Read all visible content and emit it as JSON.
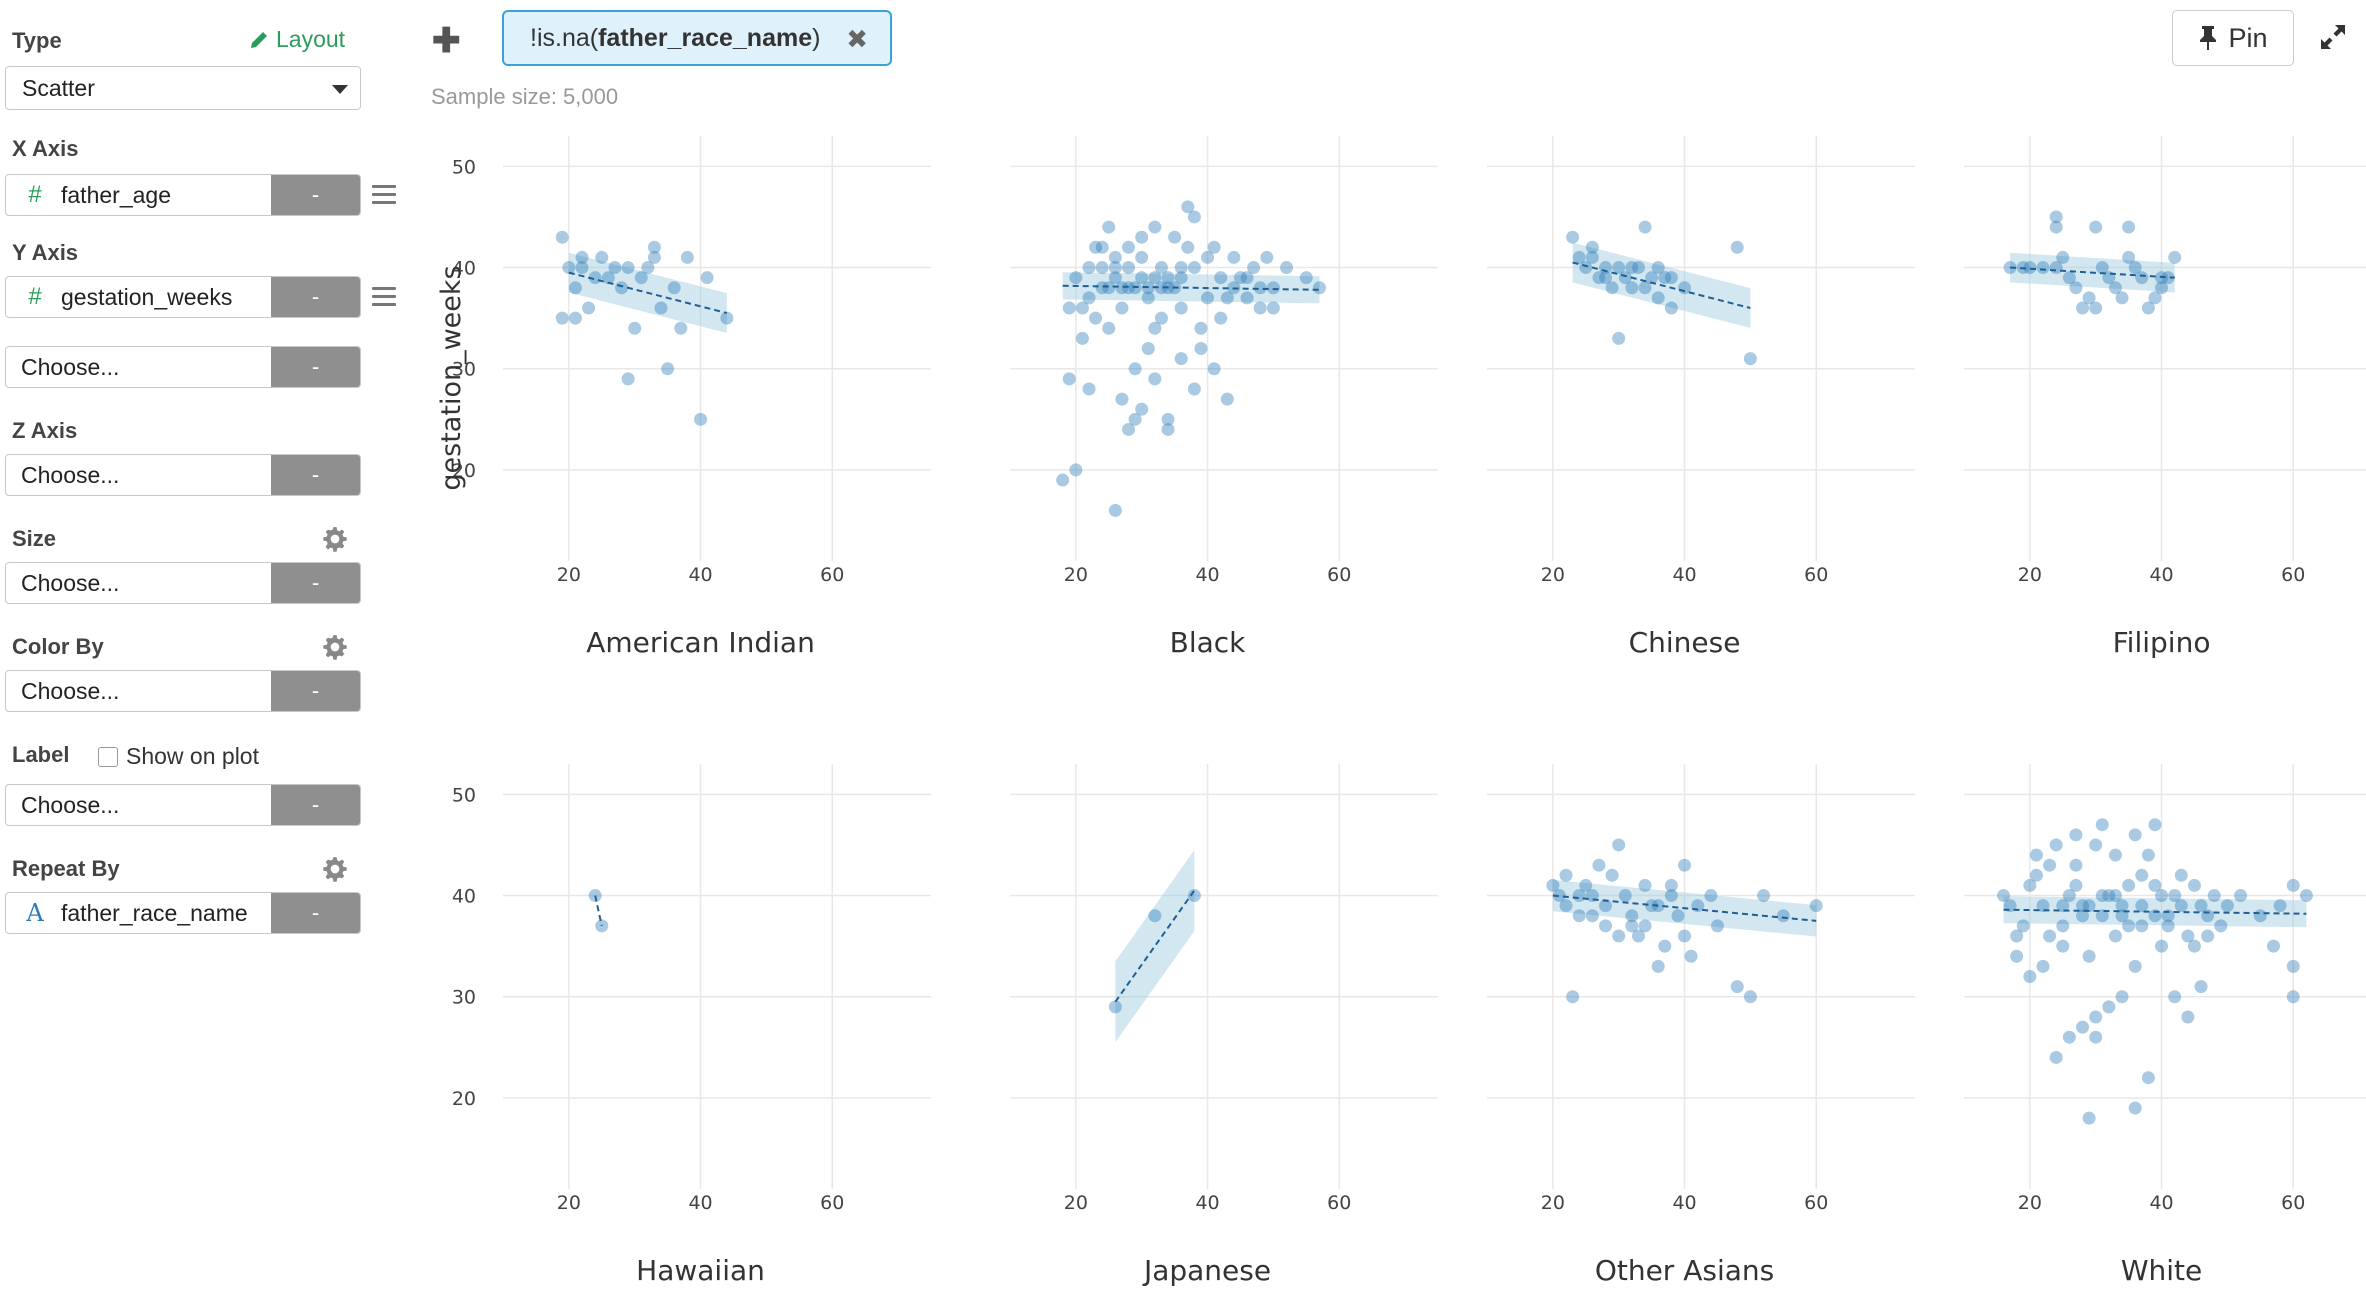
{
  "sidebar": {
    "type_label": "Type",
    "layout_link": "Layout",
    "type_value": "Scatter",
    "x_axis_label": "X Axis",
    "x_axis_value": "father_age",
    "x_axis_type_icon": "#",
    "y_axis_label": "Y Axis",
    "y_axis_value": "gestation_weeks",
    "y_axis_type_icon": "#",
    "y_axis_extra_value": "Choose...",
    "z_axis_label": "Z Axis",
    "z_axis_value": "Choose...",
    "size_label": "Size",
    "size_value": "Choose...",
    "color_label": "Color By",
    "color_value": "Choose...",
    "label_label": "Label",
    "label_checkbox": "Show on plot",
    "label_value": "Choose...",
    "repeat_label": "Repeat By",
    "repeat_value": "father_race_name",
    "repeat_type_icon": "A",
    "minus": "-"
  },
  "topbar": {
    "filter_prefix": "!is.na(",
    "filter_column": "father_race_name",
    "filter_suffix": ")",
    "sample_size": "Sample size: 5,000",
    "pin_label": "Pin"
  },
  "colors": {
    "accent_green": "#2a9d5c",
    "filter_border": "#3aa3d6",
    "point": "#2b7bba",
    "band": "#9ecae1"
  },
  "chart_data": {
    "type": "scatter",
    "facet_by": "father_race_name",
    "ylabel": "gestation_weeks",
    "xlabel": "father_age",
    "xlim": [
      10,
      75
    ],
    "ylim": [
      11,
      53
    ],
    "x_ticks": [
      20,
      40,
      60
    ],
    "y_ticks": [
      20,
      30,
      40,
      50
    ],
    "trend": "linear fit with confidence band (dashed line)",
    "facets": [
      {
        "name": "American Indian",
        "fit": [
          [
            20,
            39.5
          ],
          [
            44,
            35.5
          ]
        ],
        "points": [
          [
            19,
            43
          ],
          [
            20,
            40
          ],
          [
            21,
            38
          ],
          [
            22,
            40
          ],
          [
            23,
            36
          ],
          [
            24,
            39
          ],
          [
            25,
            41
          ],
          [
            26,
            39
          ],
          [
            27,
            40
          ],
          [
            28,
            38
          ],
          [
            29,
            29
          ],
          [
            30,
            34
          ],
          [
            31,
            39
          ],
          [
            32,
            40
          ],
          [
            33,
            41
          ],
          [
            34,
            36
          ],
          [
            35,
            30
          ],
          [
            36,
            38
          ],
          [
            37,
            34
          ],
          [
            38,
            41
          ],
          [
            40,
            25
          ],
          [
            41,
            39
          ],
          [
            44,
            35
          ],
          [
            19,
            35
          ],
          [
            21,
            35
          ],
          [
            22,
            41
          ],
          [
            29,
            40
          ],
          [
            33,
            42
          ]
        ]
      },
      {
        "name": "Black",
        "fit": [
          [
            18,
            38.2
          ],
          [
            57,
            37.8
          ]
        ],
        "points": [
          [
            18,
            19
          ],
          [
            20,
            20
          ],
          [
            19,
            29
          ],
          [
            21,
            33
          ],
          [
            22,
            28
          ],
          [
            23,
            35
          ],
          [
            24,
            42
          ],
          [
            25,
            44
          ],
          [
            26,
            39
          ],
          [
            27,
            36
          ],
          [
            28,
            38
          ],
          [
            29,
            30
          ],
          [
            30,
            41
          ],
          [
            31,
            37
          ],
          [
            32,
            34
          ],
          [
            33,
            40
          ],
          [
            34,
            25
          ],
          [
            35,
            43
          ],
          [
            36,
            39
          ],
          [
            37,
            46
          ],
          [
            38,
            45
          ],
          [
            39,
            32
          ],
          [
            40,
            41
          ],
          [
            41,
            30
          ],
          [
            42,
            35
          ],
          [
            43,
            27
          ],
          [
            44,
            38
          ],
          [
            45,
            39
          ],
          [
            46,
            37
          ],
          [
            48,
            36
          ],
          [
            50,
            38
          ],
          [
            52,
            40
          ],
          [
            55,
            39
          ],
          [
            57,
            38
          ],
          [
            26,
            16
          ],
          [
            28,
            24
          ],
          [
            30,
            26
          ],
          [
            32,
            29
          ],
          [
            34,
            24
          ],
          [
            27,
            27
          ],
          [
            29,
            25
          ],
          [
            31,
            32
          ],
          [
            36,
            31
          ],
          [
            38,
            28
          ],
          [
            20,
            39
          ],
          [
            22,
            37
          ],
          [
            24,
            38
          ],
          [
            26,
            41
          ],
          [
            28,
            42
          ],
          [
            30,
            43
          ],
          [
            32,
            44
          ],
          [
            34,
            38
          ],
          [
            36,
            36
          ],
          [
            38,
            40
          ],
          [
            40,
            37
          ],
          [
            42,
            39
          ],
          [
            44,
            41
          ],
          [
            46,
            39
          ],
          [
            48,
            38
          ],
          [
            50,
            36
          ],
          [
            22,
            40
          ],
          [
            24,
            40
          ],
          [
            26,
            40
          ],
          [
            28,
            40
          ],
          [
            30,
            39
          ],
          [
            32,
            39
          ],
          [
            34,
            39
          ],
          [
            36,
            40
          ],
          [
            25,
            38
          ],
          [
            27,
            38
          ],
          [
            29,
            38
          ],
          [
            31,
            38
          ],
          [
            33,
            38
          ],
          [
            35,
            38
          ],
          [
            23,
            42
          ],
          [
            37,
            42
          ],
          [
            41,
            42
          ],
          [
            19,
            36
          ],
          [
            21,
            36
          ],
          [
            25,
            34
          ],
          [
            33,
            35
          ],
          [
            39,
            34
          ],
          [
            43,
            37
          ],
          [
            47,
            40
          ],
          [
            49,
            41
          ]
        ]
      },
      {
        "name": "Chinese",
        "fit": [
          [
            23,
            40.5
          ],
          [
            50,
            36
          ]
        ],
        "points": [
          [
            23,
            43
          ],
          [
            24,
            41
          ],
          [
            25,
            40
          ],
          [
            26,
            41
          ],
          [
            27,
            39
          ],
          [
            28,
            40
          ],
          [
            29,
            38
          ],
          [
            30,
            40
          ],
          [
            31,
            39
          ],
          [
            32,
            38
          ],
          [
            33,
            40
          ],
          [
            34,
            38
          ],
          [
            35,
            39
          ],
          [
            36,
            37
          ],
          [
            37,
            39
          ],
          [
            38,
            36
          ],
          [
            40,
            38
          ],
          [
            30,
            33
          ],
          [
            34,
            44
          ],
          [
            48,
            42
          ],
          [
            50,
            31
          ],
          [
            26,
            42
          ],
          [
            28,
            39
          ],
          [
            32,
            40
          ],
          [
            36,
            40
          ],
          [
            38,
            39
          ]
        ]
      },
      {
        "name": "Filipino",
        "fit": [
          [
            17,
            40
          ],
          [
            42,
            39
          ]
        ],
        "points": [
          [
            17,
            40
          ],
          [
            19,
            40
          ],
          [
            20,
            40
          ],
          [
            22,
            40
          ],
          [
            24,
            40
          ],
          [
            25,
            41
          ],
          [
            26,
            39
          ],
          [
            27,
            38
          ],
          [
            28,
            36
          ],
          [
            29,
            37
          ],
          [
            30,
            36
          ],
          [
            31,
            40
          ],
          [
            32,
            39
          ],
          [
            33,
            38
          ],
          [
            34,
            37
          ],
          [
            35,
            44
          ],
          [
            36,
            40
          ],
          [
            37,
            39
          ],
          [
            38,
            36
          ],
          [
            39,
            37
          ],
          [
            40,
            38
          ],
          [
            41,
            39
          ],
          [
            42,
            41
          ],
          [
            24,
            44
          ],
          [
            24,
            45
          ],
          [
            30,
            44
          ],
          [
            35,
            41
          ],
          [
            40,
            39
          ]
        ]
      },
      {
        "name": "Hawaiian",
        "fit": [
          [
            24,
            40
          ],
          [
            25,
            37
          ]
        ],
        "points": [
          [
            24,
            40
          ],
          [
            25,
            37
          ]
        ]
      },
      {
        "name": "Japanese",
        "fit": [
          [
            26,
            29.5
          ],
          [
            38,
            40.5
          ]
        ],
        "points": [
          [
            26,
            29
          ],
          [
            32,
            38
          ],
          [
            38,
            40
          ]
        ]
      },
      {
        "name": "Other Asians",
        "fit": [
          [
            20,
            40
          ],
          [
            60,
            37.5
          ]
        ],
        "points": [
          [
            20,
            41
          ],
          [
            21,
            40
          ],
          [
            22,
            39
          ],
          [
            23,
            30
          ],
          [
            24,
            38
          ],
          [
            25,
            41
          ],
          [
            26,
            40
          ],
          [
            27,
            43
          ],
          [
            28,
            39
          ],
          [
            29,
            42
          ],
          [
            30,
            45
          ],
          [
            31,
            40
          ],
          [
            32,
            38
          ],
          [
            33,
            36
          ],
          [
            34,
            41
          ],
          [
            35,
            39
          ],
          [
            36,
            33
          ],
          [
            37,
            35
          ],
          [
            38,
            40
          ],
          [
            39,
            38
          ],
          [
            40,
            36
          ],
          [
            41,
            34
          ],
          [
            42,
            39
          ],
          [
            45,
            37
          ],
          [
            48,
            31
          ],
          [
            50,
            30
          ],
          [
            52,
            40
          ],
          [
            55,
            38
          ],
          [
            60,
            39
          ],
          [
            28,
            37
          ],
          [
            30,
            36
          ],
          [
            32,
            37
          ],
          [
            34,
            37
          ],
          [
            36,
            39
          ],
          [
            38,
            41
          ],
          [
            24,
            40
          ],
          [
            26,
            38
          ],
          [
            22,
            42
          ],
          [
            40,
            43
          ],
          [
            44,
            40
          ]
        ]
      },
      {
        "name": "White",
        "fit": [
          [
            16,
            38.6
          ],
          [
            62,
            38.2
          ]
        ],
        "points": [
          [
            16,
            40
          ],
          [
            17,
            39
          ],
          [
            18,
            36
          ],
          [
            19,
            37
          ],
          [
            20,
            41
          ],
          [
            21,
            42
          ],
          [
            22,
            39
          ],
          [
            23,
            36
          ],
          [
            24,
            24
          ],
          [
            25,
            35
          ],
          [
            26,
            40
          ],
          [
            27,
            43
          ],
          [
            28,
            38
          ],
          [
            29,
            34
          ],
          [
            30,
            26
          ],
          [
            31,
            47
          ],
          [
            32,
            40
          ],
          [
            33,
            36
          ],
          [
            34,
            39
          ],
          [
            35,
            41
          ],
          [
            36,
            33
          ],
          [
            37,
            42
          ],
          [
            38,
            44
          ],
          [
            39,
            38
          ],
          [
            40,
            35
          ],
          [
            41,
            37
          ],
          [
            42,
            40
          ],
          [
            43,
            39
          ],
          [
            44,
            36
          ],
          [
            45,
            41
          ],
          [
            46,
            39
          ],
          [
            47,
            38
          ],
          [
            48,
            40
          ],
          [
            50,
            39
          ],
          [
            52,
            40
          ],
          [
            55,
            38
          ],
          [
            58,
            39
          ],
          [
            60,
            41
          ],
          [
            62,
            40
          ],
          [
            60,
            33
          ],
          [
            60,
            30
          ],
          [
            57,
            35
          ],
          [
            29,
            18
          ],
          [
            36,
            19
          ],
          [
            38,
            22
          ],
          [
            46,
            31
          ],
          [
            44,
            28
          ],
          [
            42,
            30
          ],
          [
            26,
            26
          ],
          [
            28,
            27
          ],
          [
            30,
            28
          ],
          [
            32,
            29
          ],
          [
            34,
            30
          ],
          [
            20,
            32
          ],
          [
            22,
            33
          ],
          [
            18,
            34
          ],
          [
            24,
            45
          ],
          [
            27,
            46
          ],
          [
            30,
            45
          ],
          [
            33,
            44
          ],
          [
            36,
            46
          ],
          [
            39,
            47
          ],
          [
            21,
            44
          ],
          [
            23,
            43
          ],
          [
            25,
            37
          ],
          [
            27,
            41
          ],
          [
            29,
            39
          ],
          [
            31,
            38
          ],
          [
            33,
            40
          ],
          [
            35,
            37
          ],
          [
            37,
            39
          ],
          [
            39,
            41
          ],
          [
            41,
            38
          ],
          [
            43,
            42
          ],
          [
            45,
            35
          ],
          [
            47,
            36
          ],
          [
            49,
            37
          ],
          [
            25,
            39
          ],
          [
            28,
            39
          ],
          [
            31,
            40
          ],
          [
            34,
            38
          ],
          [
            37,
            37
          ],
          [
            40,
            40
          ]
        ]
      }
    ]
  }
}
